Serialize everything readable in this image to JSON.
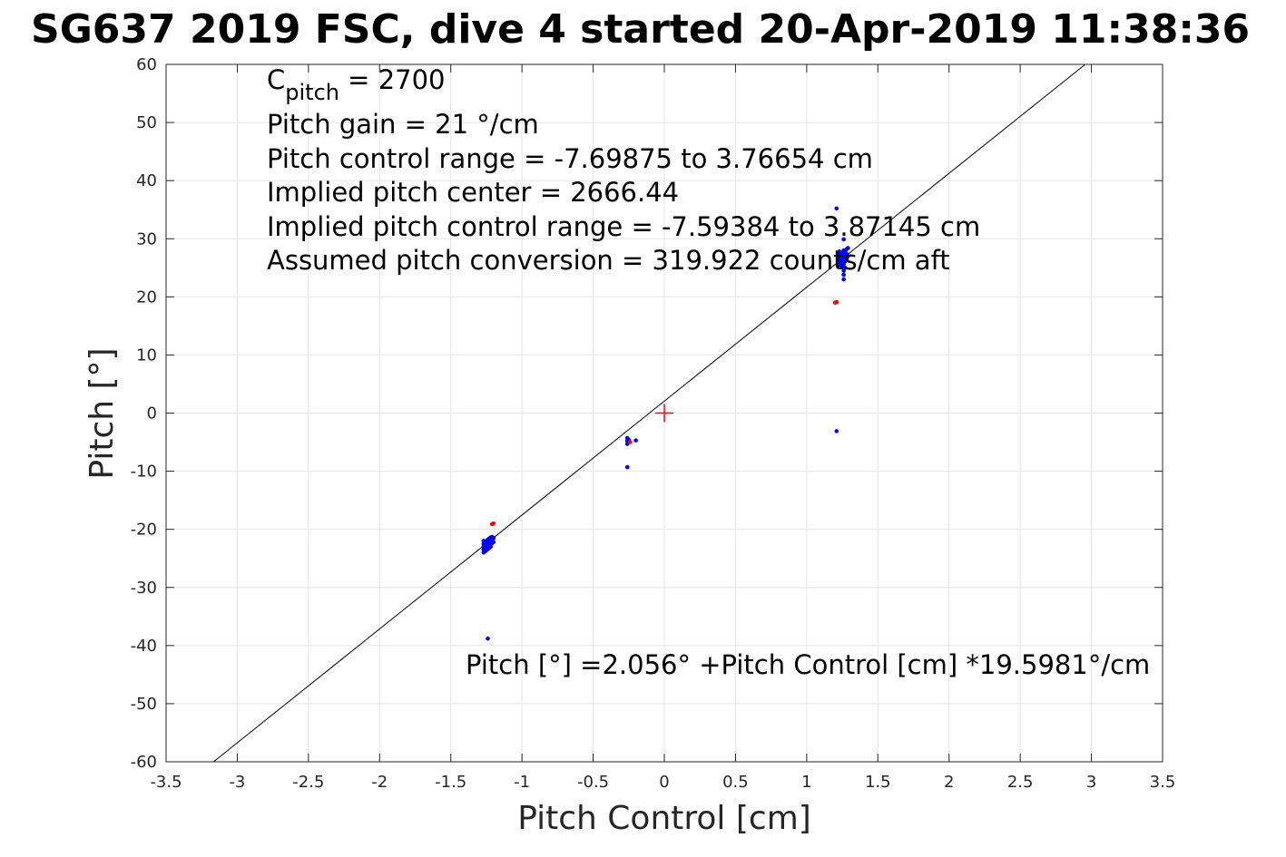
{
  "chart_data": {
    "type": "scatter",
    "title": "SG637 2019 FSC, dive 4 started 20-Apr-2019 11:38:36",
    "xlabel": "Pitch Control [cm]",
    "ylabel": "Pitch [°]",
    "xlim": [
      -3.5,
      3.5
    ],
    "ylim": [
      -60,
      60
    ],
    "xticks": [
      -3.5,
      -3,
      -2.5,
      -2,
      -1.5,
      -1,
      -0.5,
      0,
      0.5,
      1,
      1.5,
      2,
      2.5,
      3,
      3.5
    ],
    "xtick_labels": [
      "-3.5",
      "-3",
      "-2.5",
      "-2",
      "-1.5",
      "-1",
      "-0.5",
      "0",
      "0.5",
      "1",
      "1.5",
      "2",
      "2.5",
      "3",
      "3.5"
    ],
    "yticks": [
      60,
      50,
      40,
      30,
      20,
      10,
      0,
      -10,
      -20,
      -30,
      -40,
      -50,
      -60
    ],
    "ytick_labels": [
      "60",
      "50",
      "40",
      "30",
      "20",
      "10",
      "0",
      "-10",
      "-20",
      "-30",
      "-40",
      "-50",
      "-60"
    ],
    "grid": true,
    "colors": {
      "blue_points": "#0000ff",
      "red_points": "#ff0000",
      "fit_line": "#000000",
      "center_marker": "#ff0000"
    },
    "fit_line": {
      "intercept": 2.056,
      "slope": 19.5981
    },
    "center_marker": {
      "x": 0,
      "y": 0
    },
    "annotations": {
      "cpitch_prefix": "C",
      "cpitch_sub": "pitch",
      "cpitch_value": " = 2700",
      "lines": [
        "Pitch gain = 21 °/cm",
        "Pitch control range = -7.69875 to 3.76654 cm",
        "Implied pitch center = 2666.44",
        "Implied pitch control range = -7.59384 to 3.87145 cm",
        "Assumed pitch conversion = 319.922 counts/cm aft"
      ],
      "fit_equation": "Pitch [°] =2.056° +Pitch Control [cm] *19.5981°/cm"
    },
    "series": [
      {
        "color": "blue",
        "points": [
          [
            -1.27,
            -22.0
          ],
          [
            -1.27,
            -22.5
          ],
          [
            -1.27,
            -23.0
          ],
          [
            -1.27,
            -23.5
          ],
          [
            -1.27,
            -24.0
          ],
          [
            -1.26,
            -22.2
          ],
          [
            -1.26,
            -22.8
          ],
          [
            -1.26,
            -23.3
          ],
          [
            -1.26,
            -23.8
          ],
          [
            -1.25,
            -22.0
          ],
          [
            -1.25,
            -22.6
          ],
          [
            -1.25,
            -23.1
          ],
          [
            -1.25,
            -23.6
          ],
          [
            -1.24,
            -21.8
          ],
          [
            -1.24,
            -22.3
          ],
          [
            -1.24,
            -22.9
          ],
          [
            -1.24,
            -23.4
          ],
          [
            -1.23,
            -21.6
          ],
          [
            -1.23,
            -22.1
          ],
          [
            -1.23,
            -22.7
          ],
          [
            -1.23,
            -23.2
          ],
          [
            -1.22,
            -21.4
          ],
          [
            -1.22,
            -21.9
          ],
          [
            -1.22,
            -22.5
          ],
          [
            -1.22,
            -23.0
          ],
          [
            -1.21,
            -21.3
          ],
          [
            -1.21,
            -21.8
          ],
          [
            -1.21,
            -22.4
          ],
          [
            -1.2,
            -21.5
          ],
          [
            -1.2,
            -22.2
          ],
          [
            -1.24,
            -38.8
          ],
          [
            -0.26,
            -4.3
          ],
          [
            -0.26,
            -4.8
          ],
          [
            -0.26,
            -5.3
          ],
          [
            -0.25,
            -4.6
          ],
          [
            -0.25,
            -5.0
          ],
          [
            -0.2,
            -4.7
          ],
          [
            -0.26,
            -9.3
          ],
          [
            1.21,
            -3.1
          ],
          [
            1.21,
            35.2
          ],
          [
            1.22,
            26.0
          ],
          [
            1.22,
            26.8
          ],
          [
            1.22,
            27.5
          ],
          [
            1.23,
            25.5
          ],
          [
            1.23,
            26.3
          ],
          [
            1.23,
            27.1
          ],
          [
            1.23,
            27.8
          ],
          [
            1.24,
            25.8
          ],
          [
            1.24,
            26.6
          ],
          [
            1.24,
            27.3
          ],
          [
            1.25,
            25.2
          ],
          [
            1.25,
            26.0
          ],
          [
            1.25,
            26.9
          ],
          [
            1.25,
            27.6
          ],
          [
            1.26,
            24.5
          ],
          [
            1.26,
            25.6
          ],
          [
            1.26,
            26.4
          ],
          [
            1.26,
            27.2
          ],
          [
            1.26,
            28.0
          ],
          [
            1.27,
            25.0
          ],
          [
            1.27,
            26.1
          ],
          [
            1.27,
            27.0
          ],
          [
            1.27,
            27.7
          ],
          [
            1.28,
            26.5
          ],
          [
            1.28,
            27.4
          ],
          [
            1.28,
            28.2
          ],
          [
            1.29,
            27.0
          ],
          [
            1.29,
            28.4
          ],
          [
            1.26,
            23.0
          ],
          [
            1.26,
            23.8
          ],
          [
            1.26,
            29.9
          ]
        ]
      },
      {
        "color": "red",
        "points": [
          [
            -1.2,
            -19.0
          ],
          [
            -1.21,
            -19.1
          ],
          [
            -0.24,
            -5.0
          ],
          [
            1.2,
            19.0
          ],
          [
            1.21,
            19.1
          ]
        ]
      }
    ]
  }
}
